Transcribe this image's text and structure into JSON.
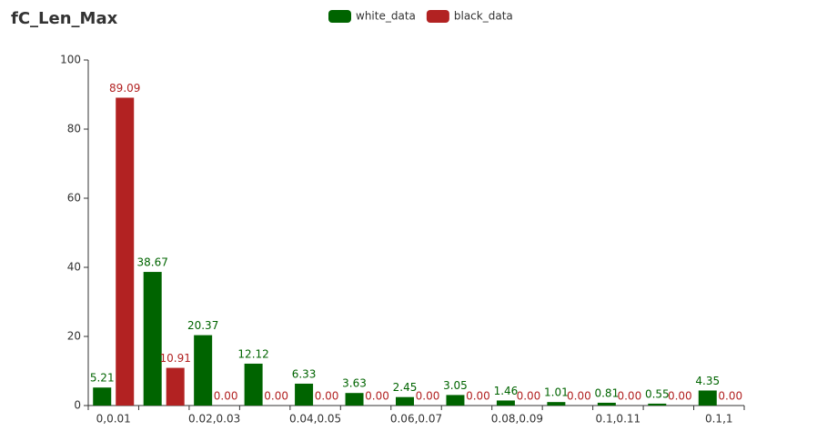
{
  "chart_data": {
    "type": "bar",
    "title": "fC_Len_Max",
    "categories": [
      "0,0.01",
      null,
      "0.02,0.03",
      null,
      "0.04,0.05",
      null,
      "0.06,0.07",
      null,
      "0.08,0.09",
      null,
      "0.1,0.11",
      null,
      "0.1,1"
    ],
    "series": [
      {
        "name": "white_data",
        "color": "#006400",
        "values": [
          5.21,
          38.67,
          20.37,
          12.12,
          6.33,
          3.63,
          2.45,
          3.05,
          1.46,
          1.01,
          0.81,
          0.55,
          4.35
        ],
        "value_labels": [
          "5.21",
          "38.67",
          "20.37",
          "12.12",
          "6.33",
          "3.63",
          "2.45",
          "3.05",
          "1.46",
          "1.01",
          "0.81",
          "0.55",
          "4.35"
        ]
      },
      {
        "name": "black_data",
        "color": "#b22222",
        "values": [
          89.09,
          10.91,
          0,
          0,
          0,
          0,
          0,
          0,
          0,
          0,
          0,
          0,
          0
        ],
        "value_labels": [
          "89.09",
          "10.91",
          "0.00",
          "0.00",
          "0.00",
          "0.00",
          "0.00",
          "0.00",
          "0.00",
          "0.00",
          "0.00",
          "0.00",
          "0.00"
        ]
      }
    ],
    "ylim": [
      0,
      100
    ],
    "yticks": [
      0,
      20,
      40,
      60,
      80,
      100
    ],
    "grid": false
  }
}
